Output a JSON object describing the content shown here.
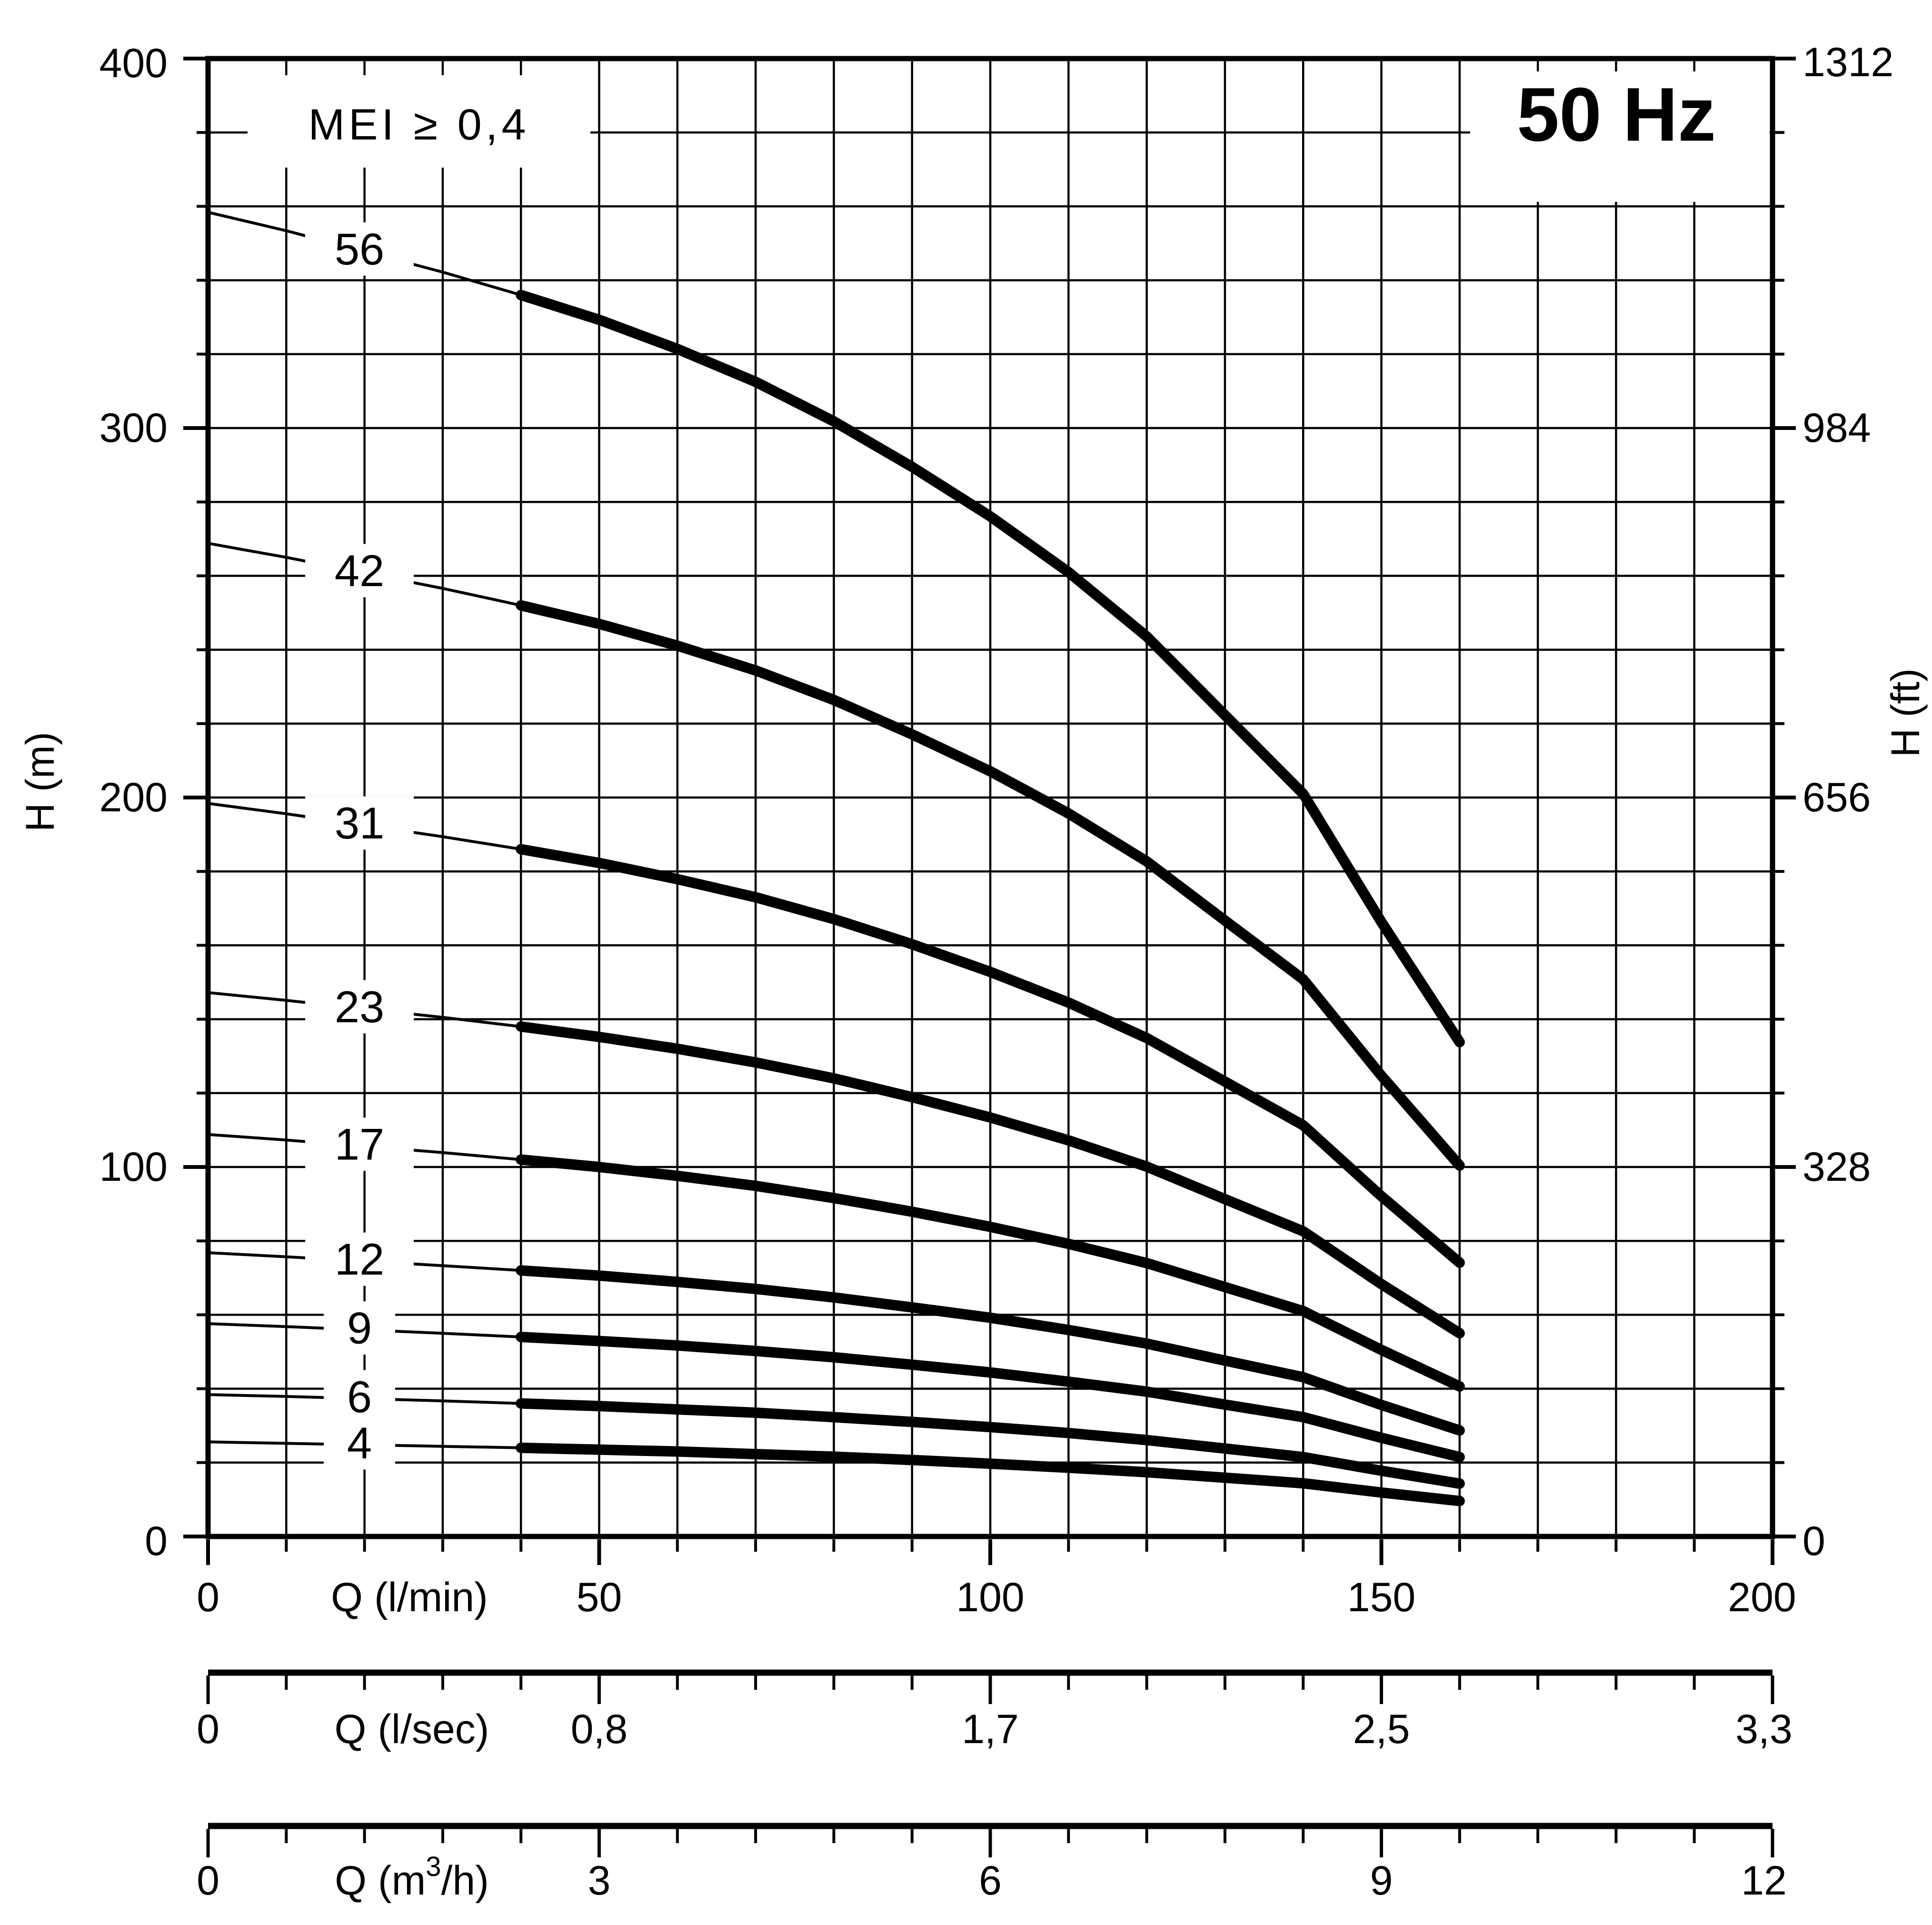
{
  "frequency_badge": "50 Hz",
  "mei_label": "MEI ≥ 0,4",
  "colors": {
    "ink": "#000000",
    "background": "#ffffff"
  },
  "axes_text": {
    "y_left_title": "H (m)",
    "y_right_title": "H (ft)",
    "x_main_title": "Q (l/min)",
    "x_lsec_title": "Q (l/sec)",
    "x_m3h_title": "Q (m³/h)"
  },
  "chart_data": {
    "type": "line",
    "title": "50 Hz",
    "annotation": "MEI ≥ 0,4",
    "grid": {
      "minor_q_step_lmin": 10,
      "minor_h_step_m": 20,
      "grid_on": true
    },
    "x_axis_main": {
      "label": "Q (l/min)",
      "range": [
        0,
        200
      ],
      "major_ticks": [
        0,
        50,
        100,
        150,
        200
      ],
      "tick_labels": [
        "0",
        "50",
        "100",
        "150",
        "200"
      ]
    },
    "x_axis_lsec": {
      "label": "Q (l/sec)",
      "tick_positions_lmin": [
        0,
        50,
        100,
        150,
        200
      ],
      "tick_labels": [
        "0",
        "0,8",
        "1,7",
        "2,5",
        "3,3"
      ]
    },
    "x_axis_m3h": {
      "label": "Q (m³/h)",
      "tick_positions_lmin": [
        0,
        50,
        100,
        150,
        200
      ],
      "tick_labels": [
        "0",
        "3",
        "6",
        "9",
        "12"
      ]
    },
    "y_axis_left": {
      "label": "H (m)",
      "range": [
        0,
        400
      ],
      "major_ticks": [
        0,
        100,
        200,
        300,
        400
      ],
      "tick_labels": [
        "400",
        "300",
        "200",
        "100",
        "0"
      ]
    },
    "y_axis_right": {
      "label": "H (ft)",
      "tick_positions_m": [
        400,
        300,
        200,
        100,
        0
      ],
      "tick_labels": [
        "1312",
        "984",
        "656",
        "328",
        "0"
      ]
    },
    "curve_style": {
      "thin_range_lmin": [
        0,
        40
      ],
      "thick_range_lmin": [
        40,
        160
      ],
      "label_q_lmin": 19.75
    },
    "q_samples_lmin": [
      0,
      10,
      20,
      30,
      40,
      50,
      60,
      70,
      80,
      90,
      100,
      110,
      120,
      130,
      140,
      150,
      160
    ],
    "head_per_stage_m": [
      6.4,
      6.31,
      6.21,
      6.11,
      6.0,
      5.88,
      5.74,
      5.58,
      5.39,
      5.17,
      4.93,
      4.66,
      4.35,
      3.97,
      3.59,
      2.97,
      2.39
    ],
    "series": [
      {
        "name": "56",
        "stages": 56,
        "head_m": [
          358.4,
          353.4,
          347.8,
          342.2,
          336.0,
          329.3,
          321.4,
          312.5,
          301.8,
          289.5,
          276.1,
          261.0,
          243.6,
          222.3,
          201.0,
          166.3,
          133.8
        ]
      },
      {
        "name": "42",
        "stages": 42,
        "head_m": [
          268.8,
          265.0,
          260.8,
          256.6,
          252.0,
          247.0,
          241.1,
          234.4,
          226.4,
          217.1,
          207.1,
          195.7,
          182.7,
          166.7,
          150.8,
          124.7,
          100.4
        ]
      },
      {
        "name": "31",
        "stages": 31,
        "head_m": [
          198.4,
          195.6,
          192.5,
          189.4,
          186.0,
          182.3,
          177.9,
          173.0,
          167.1,
          160.3,
          152.8,
          144.5,
          134.9,
          123.1,
          111.3,
          92.1,
          74.1
        ]
      },
      {
        "name": "23",
        "stages": 23,
        "head_m": [
          147.2,
          145.1,
          142.8,
          140.5,
          138.0,
          135.2,
          132.0,
          128.3,
          124.0,
          118.9,
          113.4,
          107.2,
          100.1,
          91.3,
          82.6,
          68.3,
          55.0
        ]
      },
      {
        "name": "17",
        "stages": 17,
        "head_m": [
          108.8,
          107.3,
          105.6,
          103.9,
          102.0,
          100.0,
          97.6,
          94.9,
          91.6,
          87.9,
          83.8,
          79.2,
          74.0,
          67.5,
          61.0,
          50.5,
          40.6
        ]
      },
      {
        "name": "12",
        "stages": 12,
        "head_m": [
          76.8,
          75.7,
          74.5,
          73.3,
          72.0,
          70.6,
          68.9,
          67.0,
          64.7,
          62.0,
          59.2,
          55.9,
          52.2,
          47.6,
          43.1,
          35.6,
          28.7
        ]
      },
      {
        "name": "9",
        "stages": 9,
        "head_m": [
          57.6,
          56.8,
          55.9,
          55.0,
          54.0,
          52.9,
          51.7,
          50.2,
          48.5,
          46.5,
          44.4,
          41.9,
          39.2,
          35.7,
          32.3,
          26.7,
          21.5
        ]
      },
      {
        "name": "6",
        "stages": 6,
        "head_m": [
          38.4,
          37.9,
          37.3,
          36.7,
          36.0,
          35.3,
          34.4,
          33.5,
          32.3,
          31.0,
          29.6,
          28.0,
          26.1,
          23.8,
          21.5,
          17.8,
          14.3
        ]
      },
      {
        "name": "4",
        "stages": 4,
        "head_m": [
          25.6,
          25.2,
          24.8,
          24.4,
          24.0,
          23.5,
          23.0,
          22.3,
          21.6,
          20.7,
          19.7,
          18.6,
          17.4,
          15.9,
          14.4,
          11.9,
          9.6
        ]
      }
    ]
  }
}
